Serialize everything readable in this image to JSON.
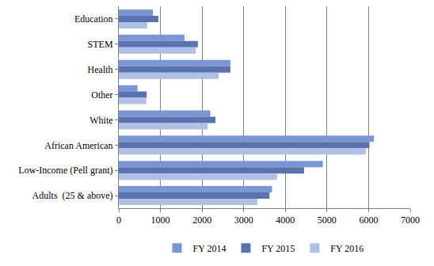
{
  "chart_data": {
    "type": "bar",
    "orientation": "horizontal",
    "categories": [
      "Education",
      "STEM",
      "Health",
      "Other",
      "White",
      "African American",
      "Low-Income (Pell grant)",
      "Adults  (25 & above)"
    ],
    "series": [
      {
        "name": "FY 2014",
        "color": "#7b96d4",
        "values": [
          820,
          1580,
          2680,
          450,
          2200,
          6130,
          4900,
          3680
        ]
      },
      {
        "name": "FY 2015",
        "color": "#5a73b0",
        "values": [
          950,
          1900,
          2680,
          670,
          2320,
          6020,
          4450,
          3620
        ]
      },
      {
        "name": "FY 2016",
        "color": "#b0bfe4",
        "values": [
          680,
          1850,
          2400,
          660,
          2130,
          5930,
          3800,
          3330
        ]
      }
    ],
    "xlim": [
      0,
      7000
    ],
    "xticks": [
      0,
      1000,
      2000,
      3000,
      4000,
      5000,
      6000,
      7000
    ],
    "grid": true,
    "legend": "bottom"
  }
}
